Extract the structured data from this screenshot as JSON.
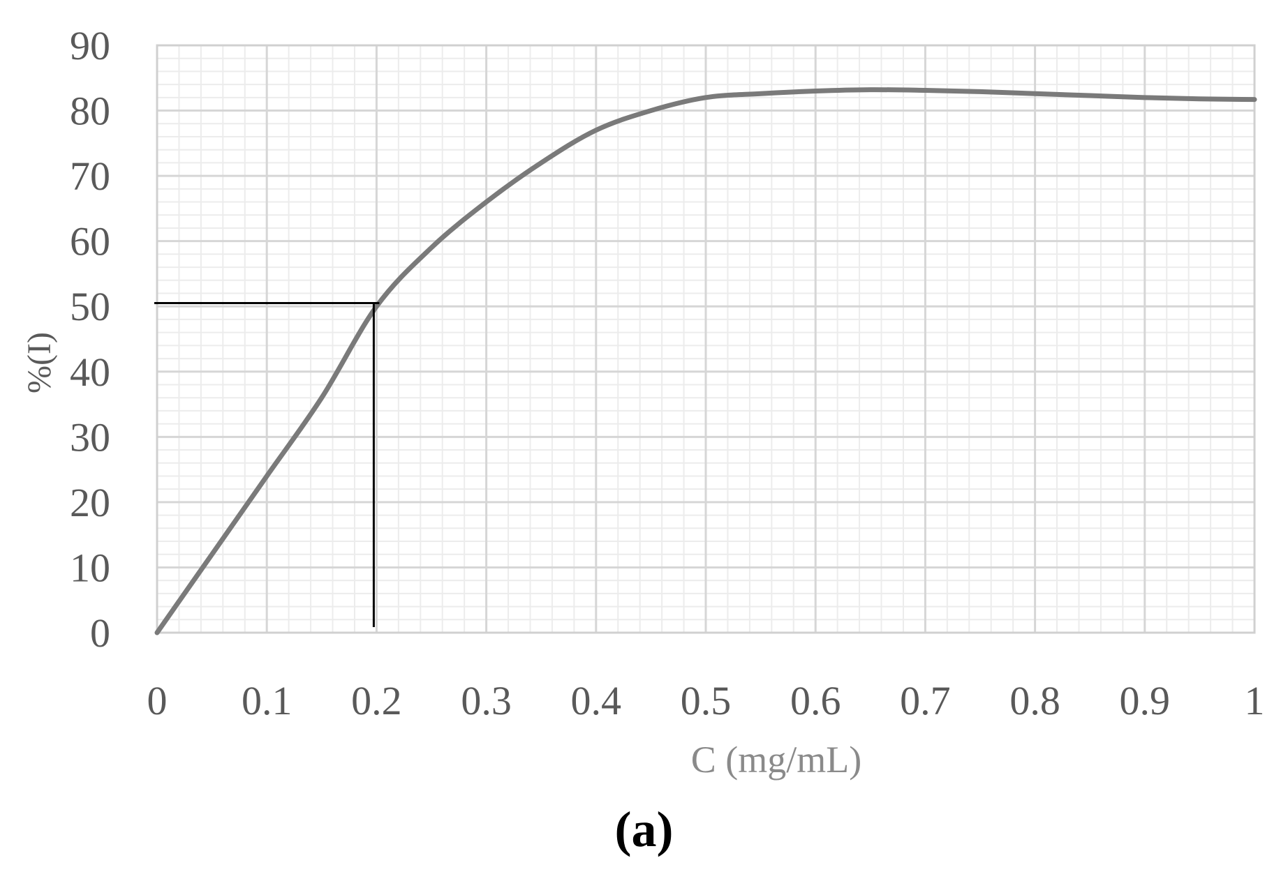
{
  "chart_data": {
    "type": "line",
    "xlabel": "C (mg/mL)",
    "ylabel": "%(I)",
    "panel_label": "(a)",
    "xlim": [
      0,
      1
    ],
    "ylim": [
      0,
      90
    ],
    "x_ticks": [
      "0",
      "0.1",
      "0.2",
      "0.3",
      "0.4",
      "0.5",
      "0.6",
      "0.7",
      "0.8",
      "0.9",
      "1"
    ],
    "y_ticks": [
      "0",
      "10",
      "20",
      "30",
      "40",
      "50",
      "60",
      "70",
      "80",
      "90"
    ],
    "grid": true,
    "series": [
      {
        "color": "#7a7a7a",
        "x": [
          0,
          0.05,
          0.1,
          0.15,
          0.2,
          0.25,
          0.3,
          0.35,
          0.4,
          0.45,
          0.5,
          0.55,
          0.6,
          0.65,
          0.7,
          0.75,
          0.8,
          0.85,
          0.9,
          0.95,
          1.0
        ],
        "y": [
          0,
          12,
          24,
          36,
          50,
          59,
          66,
          72,
          77,
          80,
          82,
          82.6,
          83,
          83.2,
          83.1,
          82.9,
          82.6,
          82.3,
          82.0,
          81.8,
          81.7
        ]
      }
    ],
    "annotation": {
      "description_color": "#000000",
      "x": 0.2,
      "y": 50.5
    }
  }
}
